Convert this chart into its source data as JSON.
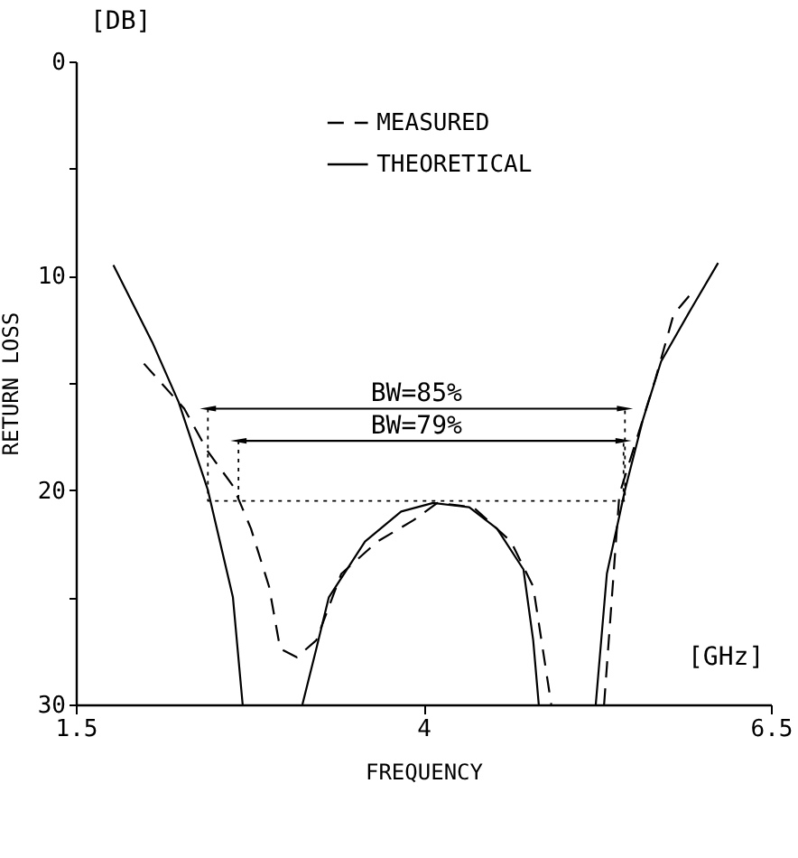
{
  "chart_data": {
    "type": "line",
    "xlabel": "FREQUENCY",
    "ylabel": "RETURN LOSS",
    "xlim": [
      1.5,
      6.5
    ],
    "xticks": [
      1.5,
      4.0,
      6.5
    ],
    "ylim": [
      30,
      0
    ],
    "yticks": [
      0,
      {
        "value": 5,
        "label": null
      },
      10,
      {
        "value": 15,
        "label": null
      },
      20,
      {
        "value": 25,
        "label": null
      },
      30
    ],
    "grid": false,
    "legend": "top",
    "marker": "none",
    "series": [
      {
        "name": "MEASURED",
        "color": "#000000",
        "line_style": "dashed",
        "x": [
          1.99,
          2.28,
          2.45,
          2.63,
          2.76,
          2.89,
          2.97,
          3.09,
          3.23,
          3.41,
          3.67,
          3.93,
          4.1,
          4.36,
          4.63,
          4.79,
          4.92,
          5.1,
          5.3,
          5.41,
          5.54,
          5.67,
          5.8,
          5.93
        ],
        "values": [
          14.1,
          16.2,
          18.2,
          19.8,
          21.8,
          24.5,
          27.4,
          27.8,
          27,
          23.9,
          22.4,
          21.4,
          20.6,
          20.8,
          22.4,
          24.5,
          30,
          null,
          30,
          20.2,
          17.5,
          14.8,
          11.8,
          10.8
        ]
      },
      {
        "name": "THEORETICAL",
        "color": "#000000",
        "line_style": "solid",
        "x": [
          1.77,
          2.05,
          2.24,
          2.45,
          2.63,
          2.7,
          2.9,
          3.13,
          3.23,
          3.32,
          3.58,
          3.84,
          4.07,
          4.33,
          4.53,
          4.72,
          4.79,
          4.83,
          5.0,
          5.24,
          5.32,
          5.45,
          5.58,
          5.71,
          5.93,
          6.12
        ],
        "values": [
          9.5,
          13.1,
          15.9,
          20,
          25,
          30,
          null,
          30,
          27.4,
          25,
          22.4,
          21,
          20.6,
          20.8,
          21.8,
          23.7,
          27,
          30,
          null,
          30,
          23.9,
          20,
          16.7,
          14,
          11.5,
          9.4
        ]
      },
      {
        "color": "#000000",
        "line_style": "solid",
        "marker": "triangle",
        "x": [
          2.45,
          5.45
        ],
        "values": [
          16.2,
          16.2
        ]
      },
      {
        "color": "#000000",
        "line_style": "solid",
        "marker": "triangle",
        "x": [
          2.67,
          5.44
        ],
        "values": [
          17.7,
          17.7
        ]
      },
      {
        "color": "#000000",
        "line_style": "dotted",
        "x": [
          2.45,
          2.45,
          5.45,
          5.45
        ],
        "values": [
          16.2,
          20.5,
          20.5,
          16.2
        ]
      },
      {
        "color": "#000000",
        "line_style": "dotted",
        "x": [
          2.67,
          2.67
        ],
        "values": [
          17.7,
          20.5
        ]
      },
      {
        "color": "#000000",
        "line_style": "dotted",
        "x": [
          5.44,
          5.44
        ],
        "values": [
          20.5,
          17.7
        ]
      }
    ],
    "annotations": [
      {
        "text": "BW=85%",
        "x": 3.95,
        "y": 16.2
      },
      {
        "text": "BW=79%",
        "x": 3.95,
        "y": 17.7
      },
      "[DB]",
      "[GHz]"
    ]
  }
}
